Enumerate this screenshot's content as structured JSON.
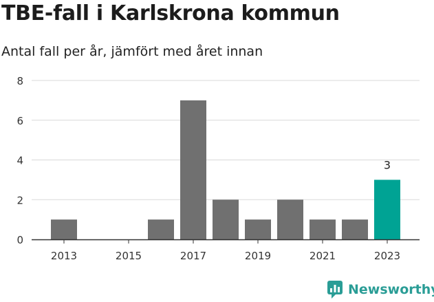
{
  "title": "TBE-fall i Karlskrona kommun",
  "subtitle": "Antal fall per år, jämfört med året innan",
  "brand": "Newsworthy",
  "colors": {
    "bar": "#707070",
    "highlight": "#00a394",
    "grid": "#d9d9d9",
    "brand": "#2a9d96"
  },
  "chart_data": {
    "type": "bar",
    "categories": [
      2013,
      2014,
      2015,
      2016,
      2017,
      2018,
      2019,
      2020,
      2021,
      2022,
      2023
    ],
    "values": [
      1,
      0,
      0,
      1,
      7,
      2,
      1,
      2,
      1,
      1,
      3
    ],
    "x_tick_labels": [
      "2013",
      "2015",
      "2017",
      "2019",
      "2021",
      "2023"
    ],
    "y_ticks": [
      0,
      2,
      4,
      6,
      8
    ],
    "ylim": [
      0,
      8
    ],
    "highlight": {
      "category": 2023,
      "label": "3"
    },
    "grid": true
  }
}
